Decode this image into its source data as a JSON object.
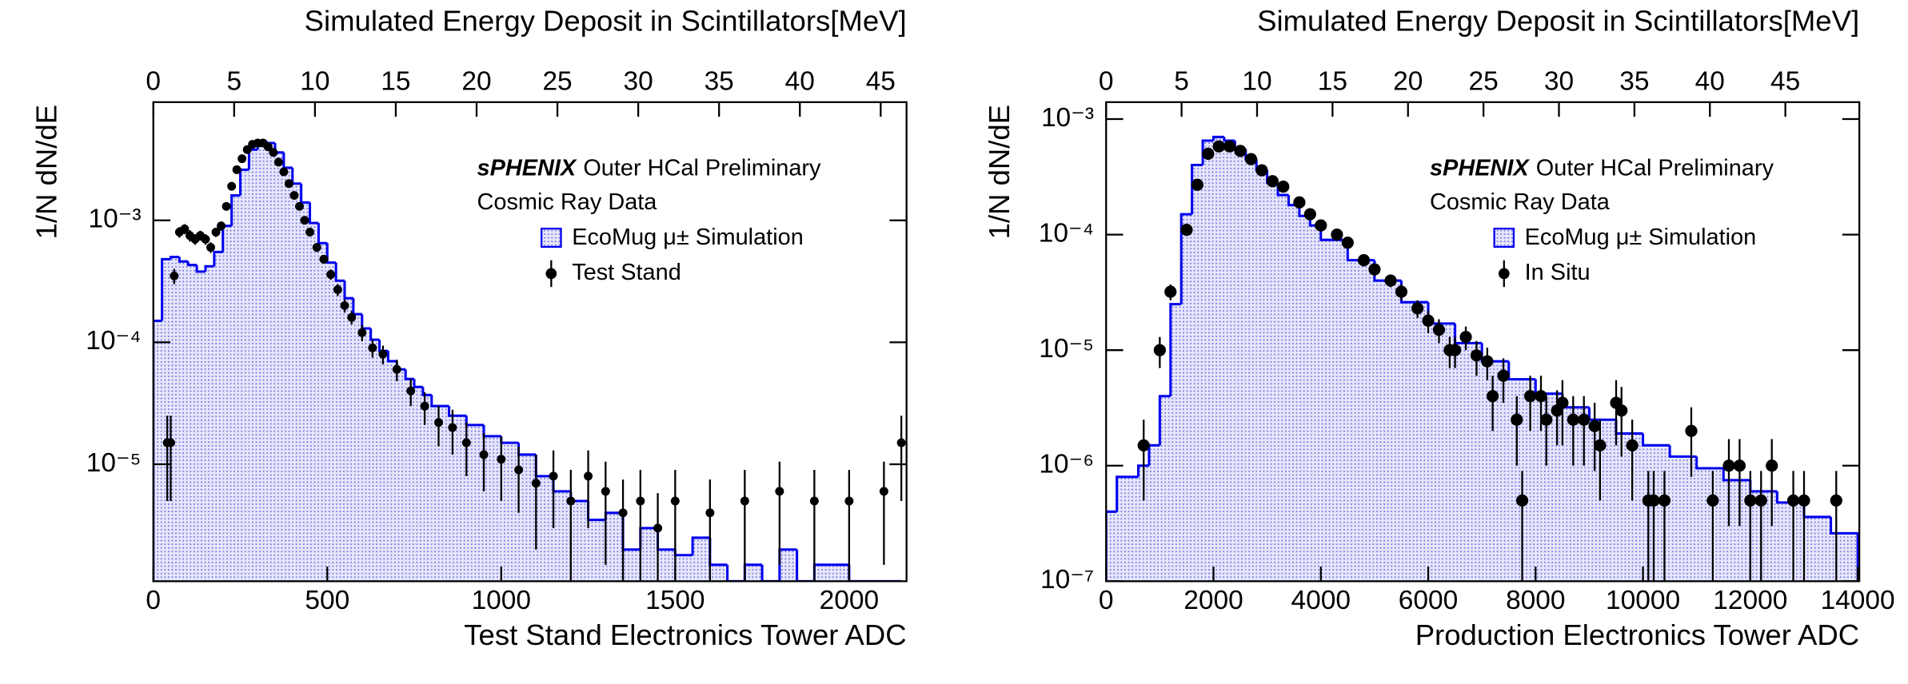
{
  "chart_data": [
    {
      "type": "histogram",
      "x2label": "Simulated Energy Deposit in Scintillators[MeV]",
      "xlabel": "Test Stand Electronics Tower ADC",
      "ylabel": "1/N dN/dE",
      "annotations": [
        "sPHENIX",
        "Outer HCal Preliminary",
        "Cosmic Ray Data"
      ],
      "log_y": true,
      "legend": "upper right",
      "xlim": [
        0,
        2165
      ],
      "xticks": [
        0,
        500,
        1000,
        1500,
        2000
      ],
      "x2lim": [
        0,
        46.6
      ],
      "x2ticks": [
        0,
        5,
        10,
        15,
        20,
        25,
        30,
        35,
        40,
        45
      ],
      "ylim": [
        1.1e-06,
        0.0093
      ],
      "yticks": [
        {
          "value": 1e-05,
          "label": "10⁻⁵"
        },
        {
          "value": 0.0001,
          "label": "10⁻⁴"
        },
        {
          "value": 0.001,
          "label": "10⁻³"
        }
      ],
      "histogram": {
        "name": "EcoMug μ± Simulation",
        "color": "#0000ee",
        "bins": [
          0,
          25,
          50,
          75,
          100,
          125,
          150,
          175,
          200,
          225,
          250,
          275,
          300,
          325,
          350,
          375,
          400,
          425,
          450,
          475,
          500,
          525,
          550,
          575,
          600,
          625,
          650,
          675,
          700,
          725,
          750,
          775,
          800,
          850,
          900,
          950,
          1000,
          1050,
          1100,
          1150,
          1200,
          1250,
          1300,
          1350,
          1400,
          1450,
          1500,
          1550,
          1600,
          1650,
          1700,
          1750,
          1800,
          1850,
          1900,
          1950,
          2000,
          2050,
          2100,
          2150
        ],
        "counts": [
          0.00015,
          0.00048,
          0.0005,
          0.00046,
          0.00043,
          0.00038,
          0.00042,
          0.00055,
          0.0009,
          0.0016,
          0.0026,
          0.0038,
          0.0045,
          0.0043,
          0.0036,
          0.0027,
          0.002,
          0.0014,
          0.00095,
          0.00065,
          0.00045,
          0.00032,
          0.00023,
          0.00017,
          0.00013,
          0.000105,
          8.5e-05,
          7e-05,
          6e-05,
          5e-05,
          4.3e-05,
          3.7e-05,
          3e-05,
          2.5e-05,
          2.1e-05,
          1.7e-05,
          1.5e-05,
          1.2e-05,
          8e-06,
          6e-06,
          5e-06,
          3.5e-06,
          4e-06,
          2e-06,
          3e-06,
          2e-06,
          1.8e-06,
          2.5e-06,
          1.5e-06,
          0,
          1.5e-06,
          0,
          2e-06,
          0,
          1.5e-06,
          1.5e-06,
          0,
          0,
          0
        ]
      },
      "points": {
        "name": "Test Stand",
        "color": "#000000",
        "x": [
          40,
          50,
          60,
          75,
          90,
          105,
          120,
          135,
          150,
          165,
          180,
          195,
          210,
          225,
          240,
          255,
          270,
          285,
          300,
          315,
          330,
          345,
          360,
          375,
          390,
          405,
          420,
          435,
          450,
          470,
          490,
          510,
          530,
          550,
          570,
          600,
          630,
          660,
          700,
          740,
          780,
          820,
          860,
          900,
          950,
          1000,
          1050,
          1100,
          1150,
          1200,
          1250,
          1300,
          1350,
          1400,
          1450,
          1500,
          1600,
          1700,
          1800,
          1900,
          2000,
          2100,
          2150
        ],
        "values": [
          1.5e-05,
          1.5e-05,
          0.00035,
          0.0008,
          0.00085,
          0.00075,
          0.0007,
          0.00075,
          0.0007,
          0.0006,
          0.0008,
          0.0009,
          0.0013,
          0.0019,
          0.0026,
          0.0032,
          0.0038,
          0.0042,
          0.0043,
          0.0043,
          0.004,
          0.0036,
          0.003,
          0.0025,
          0.002,
          0.0016,
          0.0013,
          0.001,
          0.0008,
          0.0006,
          0.00048,
          0.00036,
          0.00027,
          0.0002,
          0.00016,
          0.00012,
          9e-05,
          8e-05,
          6e-05,
          4e-05,
          3e-05,
          2.2e-05,
          2e-05,
          1.5e-05,
          1.2e-05,
          1.1e-05,
          9e-06,
          7e-06,
          8e-06,
          5e-06,
          8e-06,
          6e-06,
          4e-06,
          5e-06,
          3e-06,
          5e-06,
          4e-06,
          5e-06,
          6e-06,
          5e-06,
          5e-06,
          6e-06,
          1.5e-05
        ],
        "errors": [
          1e-05,
          1e-05,
          5e-05,
          8e-05,
          8e-05,
          8e-05,
          7e-05,
          7e-05,
          7e-05,
          6e-05,
          7e-05,
          8e-05,
          0.0001,
          0.00012,
          0.00015,
          0.00018,
          0.0002,
          0.0002,
          0.0002,
          0.0002,
          0.0002,
          0.00018,
          0.00015,
          0.00013,
          0.00011,
          9e-05,
          8e-05,
          7e-05,
          6e-05,
          5e-05,
          4e-05,
          3.5e-05,
          3e-05,
          2.5e-05,
          2e-05,
          1.8e-05,
          1.5e-05,
          1.4e-05,
          1.2e-05,
          1e-05,
          9e-06,
          8e-06,
          8e-06,
          7e-06,
          6e-06,
          6e-06,
          5e-06,
          5e-06,
          5e-06,
          4e-06,
          5e-06,
          4.5e-06,
          3.5e-06,
          4e-06,
          2.8e-06,
          4e-06,
          3.5e-06,
          4e-06,
          4.5e-06,
          4e-06,
          4e-06,
          4.5e-06,
          1e-05
        ]
      }
    },
    {
      "type": "histogram",
      "x2label": "Simulated Energy Deposit in Scintillators[MeV]",
      "xlabel": "Production Electronics Tower ADC",
      "ylabel": "1/N dN/dE",
      "annotations": [
        "sPHENIX",
        "Outer HCal Preliminary",
        "Cosmic Ray Data"
      ],
      "log_y": true,
      "legend": "upper right",
      "xlim": [
        0,
        14030
      ],
      "xticks": [
        0,
        2000,
        4000,
        6000,
        8000,
        10000,
        12000,
        14000
      ],
      "x2lim": [
        0,
        49.9
      ],
      "x2ticks": [
        0,
        5,
        10,
        15,
        20,
        25,
        30,
        35,
        40,
        45
      ],
      "ylim": [
        1e-07,
        0.0014
      ],
      "yticks": [
        {
          "value": 1e-07,
          "label": "10⁻⁷"
        },
        {
          "value": 1e-06,
          "label": "10⁻⁶"
        },
        {
          "value": 1e-05,
          "label": "10⁻⁵"
        },
        {
          "value": 0.0001,
          "label": "10⁻⁴"
        },
        {
          "value": 0.001,
          "label": "10⁻³"
        }
      ],
      "histogram": {
        "name": "EcoMug μ± Simulation",
        "color": "#0000ee",
        "bins": [
          0,
          200,
          400,
          600,
          800,
          1000,
          1200,
          1400,
          1600,
          1800,
          2000,
          2200,
          2400,
          2600,
          2800,
          3000,
          3200,
          3400,
          3600,
          3800,
          4000,
          4500,
          5000,
          5500,
          6000,
          6500,
          7000,
          7500,
          8000,
          8500,
          9000,
          9500,
          10000,
          10500,
          11000,
          11500,
          12000,
          12500,
          13000,
          13500,
          14000
        ],
        "counts": [
          4e-07,
          8e-07,
          8e-07,
          1e-06,
          1.5e-06,
          4e-06,
          2.5e-05,
          0.00015,
          0.0004,
          0.00065,
          0.0007,
          0.00065,
          0.00055,
          0.00045,
          0.00036,
          0.00028,
          0.00022,
          0.00018,
          0.000145,
          0.00012,
          9e-05,
          6e-05,
          4e-05,
          2.6e-05,
          1.7e-05,
          1.15e-05,
          8e-06,
          5.6e-06,
          4.2e-06,
          3.2e-06,
          2.5e-06,
          1.9e-06,
          1.5e-06,
          1.2e-06,
          9.5e-07,
          7.5e-07,
          6e-07,
          4.8e-07,
          3.6e-07,
          2.6e-07
        ]
      },
      "points": {
        "name": "In Situ",
        "color": "#000000",
        "x": [
          700,
          1000,
          1200,
          1500,
          1700,
          1900,
          2100,
          2300,
          2500,
          2700,
          2900,
          3100,
          3300,
          3600,
          3800,
          4000,
          4300,
          4500,
          4800,
          5000,
          5300,
          5500,
          5800,
          6000,
          6200,
          6400,
          6500,
          6700,
          6900,
          7100,
          7200,
          7400,
          7650,
          7750,
          7900,
          8100,
          8200,
          8400,
          8500,
          8700,
          8900,
          9100,
          9200,
          9500,
          9600,
          9800,
          10100,
          10200,
          10400,
          10900,
          11300,
          11600,
          11800,
          12000,
          12200,
          12400,
          12800,
          13000,
          13600
        ],
        "values": [
          1.5e-06,
          1e-05,
          3.2e-05,
          0.00011,
          0.00027,
          0.0005,
          0.00058,
          0.00058,
          0.00053,
          0.00045,
          0.00036,
          0.00029,
          0.00026,
          0.00019,
          0.00015,
          0.00012,
          0.0001,
          8.5e-05,
          6e-05,
          5e-05,
          4e-05,
          3.2e-05,
          2.3e-05,
          1.8e-05,
          1.5e-05,
          1e-05,
          1e-05,
          1.3e-05,
          9e-06,
          8e-06,
          4e-06,
          6e-06,
          2.5e-06,
          5e-07,
          4e-06,
          4e-06,
          2.5e-06,
          3e-06,
          3.5e-06,
          2.5e-06,
          2.5e-06,
          2.2e-06,
          1.5e-06,
          3.5e-06,
          3e-06,
          1.5e-06,
          5e-07,
          5e-07,
          5e-07,
          2e-06,
          5e-07,
          1e-06,
          1e-06,
          5e-07,
          5e-07,
          1e-06,
          5e-07,
          5e-07,
          5e-07
        ],
        "errors": [
          1e-06,
          3e-06,
          5e-06,
          1e-05,
          2e-05,
          3e-05,
          3e-05,
          3e-05,
          3e-05,
          2.5e-05,
          2e-05,
          2e-05,
          1.8e-05,
          1.5e-05,
          1.2e-05,
          1e-05,
          1e-05,
          9e-06,
          7e-06,
          6e-06,
          5e-06,
          5e-06,
          4e-06,
          4e-06,
          3.5e-06,
          3e-06,
          3e-06,
          3e-06,
          3e-06,
          2.5e-06,
          2e-06,
          2.5e-06,
          1.5e-06,
          4e-07,
          2e-06,
          2e-06,
          1.5e-06,
          1.5e-06,
          2e-06,
          1.5e-06,
          1.5e-06,
          1.3e-06,
          1e-06,
          2e-06,
          1.8e-06,
          1e-06,
          4e-07,
          4e-07,
          4e-07,
          1.2e-06,
          4e-07,
          7e-07,
          7e-07,
          4e-07,
          4e-07,
          7e-07,
          4e-07,
          4e-07,
          4e-07
        ]
      }
    }
  ]
}
